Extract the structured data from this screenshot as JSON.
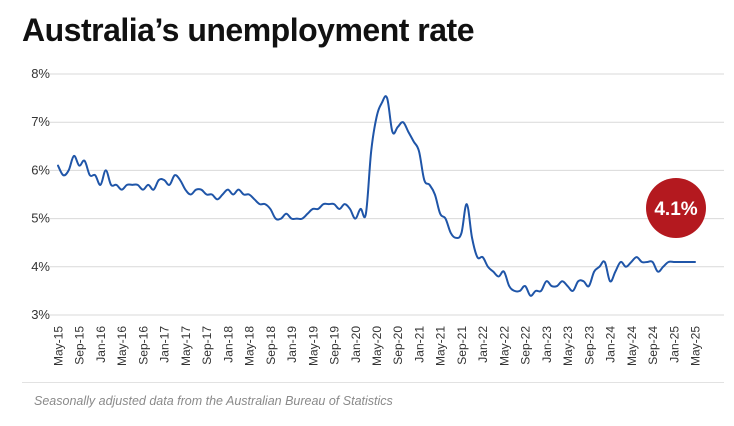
{
  "title": "Australia’s unemployment rate",
  "footnote": "Seasonally adjusted data from the Australian Bureau of Statistics",
  "callout": {
    "label": "4.1%",
    "color": "#b4191f"
  },
  "colors": {
    "line": "#1f55a8",
    "grid": "#d9d9d9",
    "tick_text": "#333333"
  },
  "chart_data": {
    "type": "line",
    "title": "Australia’s unemployment rate",
    "xlabel": "",
    "ylabel": "",
    "ylim": [
      3,
      8
    ],
    "yticks": [
      3,
      4,
      5,
      6,
      7,
      8
    ],
    "ytick_labels": [
      "3%",
      "4%",
      "5%",
      "6%",
      "7%",
      "8%"
    ],
    "grid": "horizontal",
    "legend": "none",
    "x_start": "May-15",
    "x_end": "May-25",
    "x_ticks": [
      "May-15",
      "Sep-15",
      "Jan-16",
      "May-16",
      "Sep-16",
      "Jan-17",
      "May-17",
      "Sep-17",
      "Jan-18",
      "May-18",
      "Sep-18",
      "Jan-19",
      "May-19",
      "Sep-19",
      "Jan-20",
      "May-20",
      "Sep-20",
      "Jan-21",
      "May-21",
      "Sep-21",
      "Jan-22",
      "May-22",
      "Sep-22",
      "Jan-23",
      "May-23",
      "Sep-23",
      "Jan-24",
      "May-24",
      "Sep-24",
      "Jan-25",
      "May-25"
    ],
    "x": [
      "May-15",
      "Jun-15",
      "Jul-15",
      "Aug-15",
      "Sep-15",
      "Oct-15",
      "Nov-15",
      "Dec-15",
      "Jan-16",
      "Feb-16",
      "Mar-16",
      "Apr-16",
      "May-16",
      "Jun-16",
      "Jul-16",
      "Aug-16",
      "Sep-16",
      "Oct-16",
      "Nov-16",
      "Dec-16",
      "Jan-17",
      "Feb-17",
      "Mar-17",
      "Apr-17",
      "May-17",
      "Jun-17",
      "Jul-17",
      "Aug-17",
      "Sep-17",
      "Oct-17",
      "Nov-17",
      "Dec-17",
      "Jan-18",
      "Feb-18",
      "Mar-18",
      "Apr-18",
      "May-18",
      "Jun-18",
      "Jul-18",
      "Aug-18",
      "Sep-18",
      "Oct-18",
      "Nov-18",
      "Dec-18",
      "Jan-19",
      "Feb-19",
      "Mar-19",
      "Apr-19",
      "May-19",
      "Jun-19",
      "Jul-19",
      "Aug-19",
      "Sep-19",
      "Oct-19",
      "Nov-19",
      "Dec-19",
      "Jan-20",
      "Feb-20",
      "Mar-20",
      "Apr-20",
      "May-20",
      "Jun-20",
      "Jul-20",
      "Aug-20",
      "Sep-20",
      "Oct-20",
      "Nov-20",
      "Dec-20",
      "Jan-21",
      "Feb-21",
      "Mar-21",
      "Apr-21",
      "May-21",
      "Jun-21",
      "Jul-21",
      "Aug-21",
      "Sep-21",
      "Oct-21",
      "Nov-21",
      "Dec-21",
      "Jan-22",
      "Feb-22",
      "Mar-22",
      "Apr-22",
      "May-22",
      "Jun-22",
      "Jul-22",
      "Aug-22",
      "Sep-22",
      "Oct-22",
      "Nov-22",
      "Dec-22",
      "Jan-23",
      "Feb-23",
      "Mar-23",
      "Apr-23",
      "May-23",
      "Jun-23",
      "Jul-23",
      "Aug-23",
      "Sep-23",
      "Oct-23",
      "Nov-23",
      "Dec-23",
      "Jan-24",
      "Feb-24",
      "Mar-24",
      "Apr-24",
      "May-24",
      "Jun-24",
      "Jul-24",
      "Aug-24",
      "Sep-24",
      "Oct-24",
      "Nov-24",
      "Dec-24",
      "Jan-25",
      "Feb-25",
      "Mar-25",
      "Apr-25",
      "May-25"
    ],
    "series": [
      {
        "values": [
          6.1,
          5.9,
          6.0,
          6.3,
          6.1,
          6.2,
          5.9,
          5.9,
          5.7,
          6.0,
          5.7,
          5.7,
          5.6,
          5.7,
          5.7,
          5.7,
          5.6,
          5.7,
          5.6,
          5.8,
          5.8,
          5.7,
          5.9,
          5.8,
          5.6,
          5.5,
          5.6,
          5.6,
          5.5,
          5.5,
          5.4,
          5.5,
          5.6,
          5.5,
          5.6,
          5.5,
          5.5,
          5.4,
          5.3,
          5.3,
          5.2,
          5.0,
          5.0,
          5.1,
          5.0,
          5.0,
          5.0,
          5.1,
          5.2,
          5.2,
          5.3,
          5.3,
          5.3,
          5.2,
          5.3,
          5.2,
          5.0,
          5.2,
          5.1,
          6.4,
          7.1,
          7.4,
          7.5,
          6.8,
          6.9,
          7.0,
          6.8,
          6.6,
          6.4,
          5.8,
          5.7,
          5.5,
          5.1,
          5.0,
          4.7,
          4.6,
          4.7,
          5.3,
          4.6,
          4.2,
          4.2,
          4.0,
          3.9,
          3.8,
          3.9,
          3.6,
          3.5,
          3.5,
          3.6,
          3.4,
          3.5,
          3.5,
          3.7,
          3.6,
          3.6,
          3.7,
          3.6,
          3.5,
          3.7,
          3.7,
          3.6,
          3.9,
          4.0,
          4.1,
          3.7,
          3.9,
          4.1,
          4.0,
          4.1,
          4.2,
          4.1,
          4.1,
          4.1,
          3.9,
          4.0,
          4.1,
          4.1,
          4.1,
          4.1,
          4.1,
          4.1
        ]
      }
    ]
  }
}
